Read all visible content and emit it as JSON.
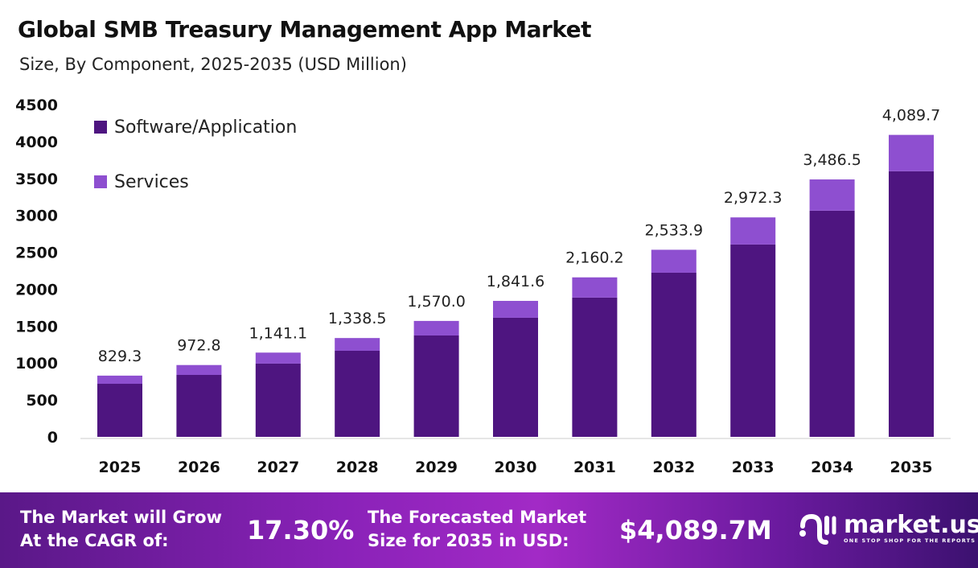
{
  "chart_data": {
    "type": "bar",
    "stacked": true,
    "title": "Global SMB Treasury Management App Market",
    "subtitle": "Size, By Component, 2025-2035 (USD Million)",
    "categories": [
      "2025",
      "2026",
      "2027",
      "2028",
      "2029",
      "2030",
      "2031",
      "2032",
      "2033",
      "2034",
      "2035"
    ],
    "series": [
      {
        "name": "Software/Application",
        "color": "#4e1580",
        "values": [
          719,
          839,
          992,
          1166,
          1373,
          1613,
          1886,
          2223,
          2605,
          3063,
          3597
        ]
      },
      {
        "name": "Services",
        "color": "#8e4fd0",
        "values": [
          110.3,
          133.8,
          149.1,
          172.5,
          197.0,
          228.6,
          274.2,
          310.9,
          367.3,
          423.5,
          492.7
        ]
      }
    ],
    "totals": [
      "829.3",
      "972.8",
      "1,141.1",
      "1,338.5",
      "1,570.0",
      "1,841.6",
      "2,160.2",
      "2,533.9",
      "2,972.3",
      "3,486.5",
      "4,089.7"
    ],
    "yticks": [
      "0",
      "500",
      "1000",
      "1500",
      "2000",
      "2500",
      "3000",
      "3500",
      "4000",
      "4500"
    ],
    "ylim": [
      0,
      4500
    ],
    "legend_position": "top-left",
    "grid": false
  },
  "footer": {
    "cagr_label_1": "The Market will Grow",
    "cagr_label_2": "At the CAGR of:",
    "cagr_value": "17.30%",
    "forecast_label_1": "The Forecasted Market",
    "forecast_label_2": "Size for 2035 in USD:",
    "forecast_value": "$4,089.7M",
    "logo_name": "market.us",
    "logo_tagline": "ONE STOP SHOP FOR THE REPORTS"
  }
}
